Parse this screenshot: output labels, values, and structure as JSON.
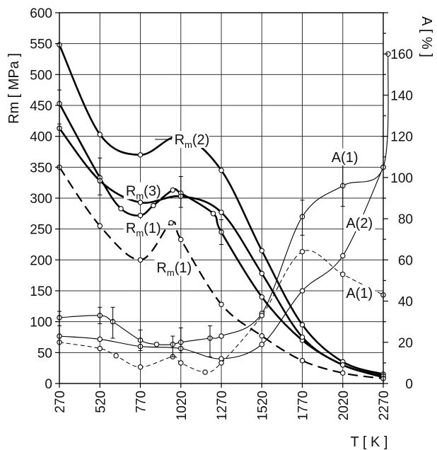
{
  "chart_data": {
    "type": "line",
    "xlabel": "T [ K ]",
    "ylabel_left": "Rm [ MPa ]",
    "ylabel_right": "A [ % ]",
    "x_ticks": [
      270,
      520,
      770,
      1020,
      1270,
      1520,
      1770,
      2020,
      2270
    ],
    "y_left_ticks": [
      0,
      50,
      100,
      150,
      200,
      250,
      300,
      350,
      400,
      450,
      500,
      550,
      600
    ],
    "y_right_ticks": [
      0,
      20,
      40,
      60,
      80,
      100,
      120,
      140,
      160
    ],
    "xlim": [
      270,
      2270
    ],
    "ylim_left": [
      0,
      600
    ],
    "ylim_right": [
      0,
      180
    ],
    "grid": true,
    "series": [
      {
        "name": "Rm(2)",
        "axis": "left",
        "style": "solid-thick",
        "x": [
          270,
          520,
          770,
          1020,
          1270,
          1520,
          1770,
          2020,
          2270
        ],
        "y": [
          548,
          403,
          370,
          400,
          345,
          215,
          95,
          35,
          15
        ]
      },
      {
        "name": "Rm(3)",
        "axis": "left",
        "style": "solid-thick",
        "x": [
          270,
          520,
          650,
          770,
          850,
          970,
          1020,
          1220,
          1270,
          1520,
          1770,
          2020,
          2270
        ],
        "y": [
          453,
          333,
          283,
          272,
          288,
          313,
          308,
          275,
          245,
          140,
          70,
          30,
          10
        ]
      },
      {
        "name": "Rm(1)",
        "axis": "left",
        "style": "solid-thick",
        "x": [
          270,
          520,
          770,
          1020,
          1270,
          1520,
          1770,
          2020,
          2270
        ],
        "y": [
          413,
          328,
          293,
          303,
          277,
          178,
          75,
          30,
          12
        ]
      },
      {
        "name": "Rm(1)",
        "axis": "left",
        "style": "dashed-thick",
        "x": [
          270,
          520,
          770,
          960,
          1020,
          1270,
          1520,
          1770,
          2020,
          2270
        ],
        "y": [
          350,
          255,
          200,
          260,
          233,
          128,
          77,
          37,
          17,
          8
        ]
      },
      {
        "name": "A(1)",
        "axis": "right",
        "style": "solid-thin",
        "x": [
          270,
          520,
          600,
          770,
          870,
          970,
          1020,
          1200,
          1270,
          1520,
          1770,
          2020,
          2270,
          2300
        ],
        "y": [
          32,
          33,
          30,
          21,
          19,
          19,
          20,
          22,
          23,
          34,
          81,
          96,
          105,
          160
        ]
      },
      {
        "name": "A(2)",
        "axis": "right",
        "style": "solid-thin",
        "x": [
          270,
          520,
          770,
          1020,
          1270,
          1520,
          1770,
          2020,
          2270
        ],
        "y": [
          23,
          21.5,
          18,
          17,
          12,
          19,
          45,
          62,
          105
        ]
      },
      {
        "name": "A(1)",
        "axis": "right",
        "style": "dashed-thin",
        "x": [
          270,
          520,
          620,
          770,
          970,
          1020,
          1170,
          1270,
          1520,
          1770,
          2020,
          2270
        ],
        "y": [
          20,
          17,
          13.5,
          8,
          13,
          10,
          5.5,
          10,
          33,
          64,
          53,
          43
        ]
      }
    ],
    "error_bars": [
      {
        "axis": "left",
        "x": 270,
        "low": 420,
        "high": 475
      },
      {
        "axis": "left",
        "x": 520,
        "low": 305,
        "high": 365
      },
      {
        "axis": "left",
        "x": 1020,
        "low": 285,
        "high": 335
      },
      {
        "axis": "left",
        "x": 1270,
        "low": 225,
        "high": 265
      },
      {
        "axis": "right",
        "x": 270,
        "low": 28,
        "high": 35
      },
      {
        "axis": "right",
        "x": 520,
        "low": 29,
        "high": 37
      },
      {
        "axis": "right",
        "x": 600,
        "low": 22,
        "high": 37
      },
      {
        "axis": "right",
        "x": 770,
        "low": 16,
        "high": 26
      },
      {
        "axis": "right",
        "x": 970,
        "low": 13,
        "high": 23
      },
      {
        "axis": "right",
        "x": 1020,
        "low": 15,
        "high": 27
      },
      {
        "axis": "right",
        "x": 1200,
        "low": 13,
        "high": 28
      },
      {
        "axis": "right",
        "x": 1770,
        "low": 72,
        "high": 89
      },
      {
        "axis": "right",
        "x": 2020,
        "low": 86,
        "high": 108
      },
      {
        "axis": "right",
        "x": 2270,
        "low": 90,
        "high": 120
      }
    ],
    "annotations": [
      {
        "base": "R",
        "sub": "m",
        "rest": "(2)",
        "x": 980,
        "y": 395,
        "axis": "left",
        "leader": [
          [
            860,
            395
          ],
          [
            965,
            395
          ]
        ]
      },
      {
        "base": "R",
        "sub": "m",
        "rest": "(3)",
        "x": 680,
        "y": 312,
        "axis": "left"
      },
      {
        "base": "R",
        "sub": "m",
        "rest": "(1)",
        "x": 680,
        "y": 252,
        "axis": "left"
      },
      {
        "base": "R",
        "sub": "m",
        "rest": "(1)",
        "x": 870,
        "y": 188,
        "axis": "left"
      },
      {
        "base": "A(1)",
        "sub": "",
        "rest": "",
        "x": 1950,
        "y": 110,
        "axis": "right"
      },
      {
        "base": "A(2)",
        "sub": "",
        "rest": "",
        "x": 2040,
        "y": 78,
        "axis": "right"
      },
      {
        "base": "A(1)",
        "sub": "",
        "rest": "",
        "x": 2040,
        "y": 44,
        "axis": "right"
      }
    ]
  }
}
